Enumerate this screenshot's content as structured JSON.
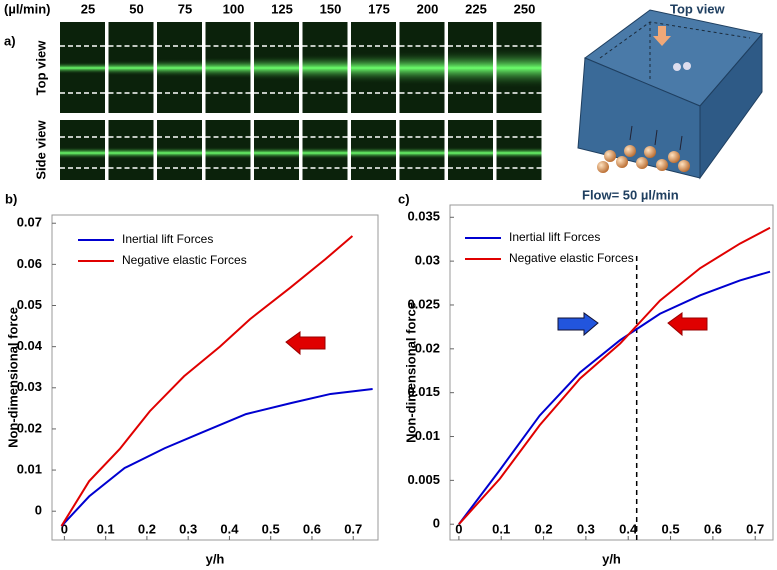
{
  "panel_a": {
    "label": "a)",
    "unit": "(µl/min)",
    "flow_rates": [
      25,
      50,
      75,
      100,
      125,
      150,
      175,
      200,
      225,
      250
    ],
    "row_labels": [
      "Top view",
      "Side view"
    ],
    "diagram_top_label": "Top view",
    "diagram_flow_label": "Flow= 50 µl/min"
  },
  "chart_data": [
    {
      "type": "line",
      "panel_label": "b)",
      "ylabel": "Non-dimensional force",
      "xlabel": "y/h",
      "xlim": [
        -0.03,
        0.76
      ],
      "ylim": [
        -0.007,
        0.072
      ],
      "xticks": [
        0,
        0.1,
        0.2,
        0.3,
        0.4,
        0.5,
        0.6,
        0.7
      ],
      "yticks": [
        0,
        0.01,
        0.02,
        0.03,
        0.04,
        0.05,
        0.06,
        0.07
      ],
      "series": [
        {
          "name": "Inertial lift Forces",
          "color": "#0000d0",
          "x": [
            -0.007,
            0.06,
            0.146,
            0.243,
            0.33,
            0.44,
            0.55,
            0.645,
            0.747
          ],
          "values": [
            -0.0036,
            0.0036,
            0.0105,
            0.0153,
            0.019,
            0.0236,
            0.0263,
            0.0285,
            0.0297
          ]
        },
        {
          "name": "Negative elastic Forces",
          "color": "#e00000",
          "x": [
            -0.007,
            0.06,
            0.134,
            0.207,
            0.29,
            0.377,
            0.45,
            0.547,
            0.633,
            0.698
          ],
          "values": [
            -0.0036,
            0.0073,
            0.0151,
            0.0243,
            0.0328,
            0.04,
            0.0467,
            0.0543,
            0.0613,
            0.0669
          ]
        }
      ]
    },
    {
      "type": "line",
      "panel_label": "c)",
      "ylabel": "Non-dimensional force",
      "xlabel": "y/h",
      "xlim": [
        -0.021,
        0.742
      ],
      "ylim": [
        -0.0018,
        0.0364
      ],
      "xticks": [
        0,
        0.1,
        0.2,
        0.3,
        0.4,
        0.5,
        0.6,
        0.7
      ],
      "yticks": [
        0,
        0.005,
        0.01,
        0.015,
        0.02,
        0.025,
        0.03,
        0.035
      ],
      "vline": 0.42,
      "series": [
        {
          "name": "Inertial lift Forces",
          "color": "#0000d0",
          "x": [
            0,
            0.097,
            0.191,
            0.286,
            0.381,
            0.475,
            0.57,
            0.664,
            0.735
          ],
          "values": [
            0,
            0.0062,
            0.0124,
            0.0173,
            0.021,
            0.024,
            0.0261,
            0.0278,
            0.0288
          ]
        },
        {
          "name": "Negative elastic Forces",
          "color": "#e00000",
          "x": [
            0,
            0.097,
            0.191,
            0.286,
            0.381,
            0.475,
            0.57,
            0.664,
            0.735
          ],
          "values": [
            0,
            0.0052,
            0.0113,
            0.0166,
            0.0206,
            0.0255,
            0.0292,
            0.032,
            0.0338
          ]
        }
      ]
    }
  ]
}
